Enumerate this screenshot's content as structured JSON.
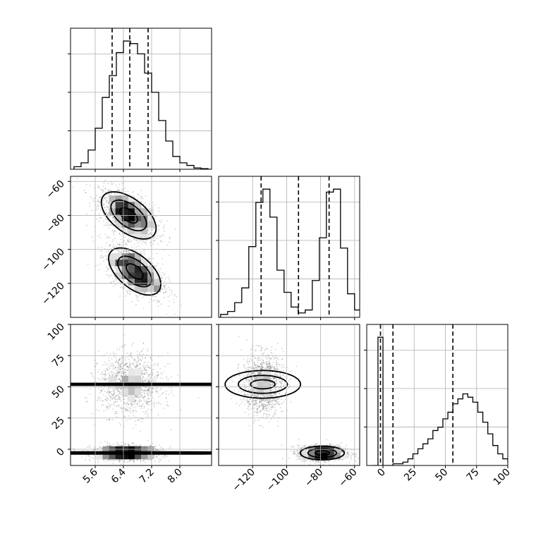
{
  "chart_data": {
    "type": "corner",
    "title": "",
    "parameters": [
      {
        "name": "",
        "range": [
          4.9,
          8.9
        ],
        "ticks": [
          5.6,
          6.4,
          7.2,
          8.0
        ],
        "tick_labels": [
          "5.6",
          "6.4",
          "7.2",
          "8.0"
        ],
        "quantiles": [
          6.08,
          6.58,
          7.1
        ]
      },
      {
        "name": "",
        "range": [
          -140,
          -57
        ],
        "ticks": [
          -120,
          -100,
          -80,
          -60
        ],
        "tick_labels": [
          "−120",
          "−100",
          "−80",
          "−60"
        ],
        "quantiles": [
          -115,
          -93,
          -75
        ]
      },
      {
        "name": "",
        "range": [
          -13,
          100
        ],
        "ticks": [
          0,
          25,
          50,
          75,
          100
        ],
        "tick_labels": [
          "0",
          "25",
          "50",
          "75",
          "100"
        ],
        "quantiles": [
          -2,
          8,
          56
        ]
      }
    ],
    "histograms": [
      {
        "param": 0,
        "x0": 5.0,
        "bin_width": 0.2,
        "counts": [
          0.02,
          0.05,
          0.15,
          0.32,
          0.56,
          0.73,
          0.91,
          1.0,
          0.98,
          0.9,
          0.75,
          0.6,
          0.38,
          0.22,
          0.1,
          0.05,
          0.03,
          0.01,
          0.005,
          0.0
        ]
      },
      {
        "param": 1,
        "x0": -138.85,
        "bin_width": 4.15,
        "counts": [
          0.02,
          0.04,
          0.1,
          0.2,
          0.48,
          0.78,
          0.87,
          0.68,
          0.32,
          0.17,
          0.07,
          0.03,
          0.05,
          0.25,
          0.54,
          0.85,
          0.87,
          0.47,
          0.16,
          0.05
        ]
      },
      {
        "param": 2,
        "x0": -8.0,
        "bin_width": 4.0,
        "counts": [
          0.0,
          0.77,
          0.0,
          0.0,
          0.01,
          0.01,
          0.02,
          0.04,
          0.07,
          0.1,
          0.13,
          0.16,
          0.21,
          0.23,
          0.28,
          0.32,
          0.37,
          0.4,
          0.43,
          0.41,
          0.38,
          0.32,
          0.26,
          0.19,
          0.12,
          0.07,
          0.04,
          0.02,
          0.01
        ]
      }
    ],
    "pairs": [
      {
        "x": 0,
        "y": 1,
        "modes": [
          {
            "center": [
              6.55,
              -80
            ],
            "spread": [
              0.42,
              7.5
            ],
            "corr": -0.55,
            "weight": 0.5
          },
          {
            "center": [
              6.72,
              -113
            ],
            "spread": [
              0.4,
              7.5
            ],
            "corr": -0.55,
            "weight": 0.5
          }
        ]
      },
      {
        "x": 0,
        "y": 2,
        "modes": [
          {
            "center": [
              6.6,
              52
            ],
            "spread": [
              0.45,
              12
            ],
            "corr": 0.0,
            "weight": 0.5
          },
          {
            "center": [
              6.5,
              -3
            ],
            "spread": [
              0.5,
              3
            ],
            "corr": 0.0,
            "weight": 0.5
          }
        ]
      },
      {
        "x": 1,
        "y": 2,
        "modes": [
          {
            "center": [
              -114,
              52
            ],
            "spread": [
              6,
              12
            ],
            "corr": 0.0,
            "weight": 0.5
          },
          {
            "center": [
              -79,
              -3
            ],
            "spread": [
              7,
              3
            ],
            "corr": 0.0,
            "weight": 0.5
          }
        ]
      }
    ],
    "grid": true,
    "contour_levels": 3,
    "quantile_line_style": "dashed"
  }
}
